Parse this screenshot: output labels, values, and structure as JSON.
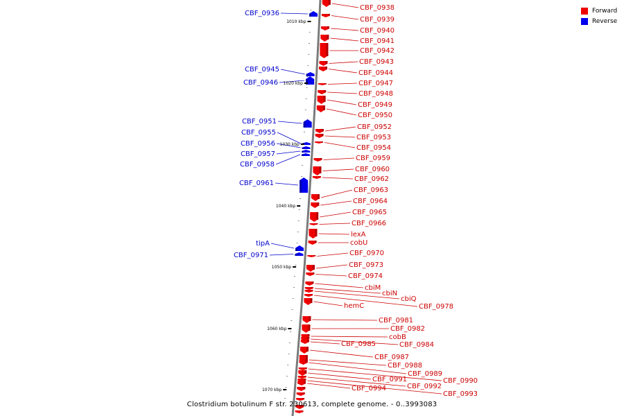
{
  "title": "Clostridium botulinum F str. 230613, complete genome. - 0..3993083",
  "legend": [
    {
      "label": "Forward",
      "color": "#ee0000"
    },
    {
      "label": "Reverse",
      "color": "#0000ee"
    }
  ],
  "colors": {
    "forward": "#ee0000",
    "reverse": "#0000ee",
    "backbone": "#777777"
  },
  "scale_labels": [
    "1010 kbp",
    "1020 kbp",
    "1030 kbp",
    "1040 kbp",
    "1050 kbp",
    "1060 kbp",
    "1070 kbp"
  ],
  "genes_reverse": [
    "CBF_0936",
    "CBF_0945",
    "CBF_0946",
    "CBF_0951",
    "CBF_0955",
    "CBF_0956",
    "CBF_0957",
    "CBF_0958",
    "CBF_0961",
    "tipA",
    "CBF_0971"
  ],
  "genes_forward": [
    "CBF_0938",
    "CBF_0939",
    "CBF_0940",
    "CBF_0941",
    "CBF_0942",
    "CBF_0943",
    "CBF_0944",
    "CBF_0947",
    "CBF_0948",
    "CBF_0949",
    "CBF_0950",
    "CBF_0952",
    "CBF_0953",
    "CBF_0954",
    "CBF_0959",
    "CBF_0960",
    "CBF_0962",
    "CBF_0963",
    "CBF_0964",
    "CBF_0965",
    "CBF_0966",
    "lexA",
    "cobU",
    "CBF_0970",
    "CBF_0973",
    "CBF_0974",
    "cbiM",
    "cbiN",
    "cbiQ",
    "CBF_0978",
    "hemC",
    "CBF_0981",
    "CBF_0982",
    "cobB",
    "CBF_0984",
    "CBF_0985",
    "CBF_0987",
    "CBF_0988",
    "CBF_0989",
    "CBF_0990",
    "CBF_0991",
    "CBF_0992",
    "CBF_0993",
    "CBF_0994"
  ]
}
